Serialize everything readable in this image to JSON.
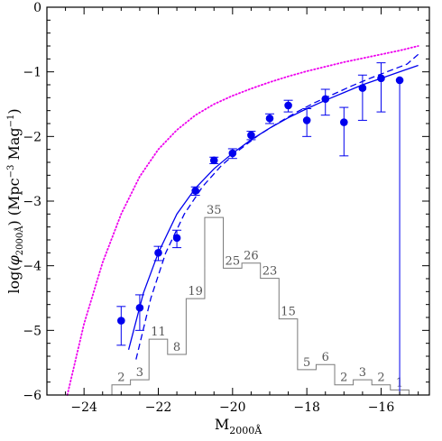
{
  "chart_data": {
    "type": "line",
    "xlabel": "M",
    "xlabel_sub": "2000Å",
    "ylabel_parts": [
      "log(",
      "φ",
      "2000Å",
      ")  (Mpc",
      "−3",
      " Mag",
      "−1",
      ")"
    ],
    "xlim": [
      -25,
      -14.7
    ],
    "ylim": [
      -6,
      0
    ],
    "x_ticks": [
      -24,
      -22,
      -20,
      -18,
      -16
    ],
    "x_tick_labels": [
      "−24",
      "−22",
      "−20",
      "−18",
      "−16"
    ],
    "y_ticks": [
      0,
      -1,
      -2,
      -3,
      -4,
      -5,
      -6
    ],
    "y_tick_labels": [
      "0",
      "−1",
      "−2",
      "−3",
      "−4",
      "−5",
      "−6"
    ],
    "grid": false,
    "colors": {
      "points": "#0000ee",
      "fit": "#0000ee",
      "dotted": "#ee00ee",
      "histogram": "#7a7a7a",
      "axes": "#000000"
    },
    "points": [
      {
        "x": -23.0,
        "y": -4.85,
        "err_lo": 0.38,
        "err_hi": 0.22
      },
      {
        "x": -22.5,
        "y": -4.65,
        "err_lo": 0.35,
        "err_hi": 0.2
      },
      {
        "x": -22.0,
        "y": -3.8,
        "err_lo": 0.12,
        "err_hi": 0.1
      },
      {
        "x": -21.5,
        "y": -3.57,
        "err_lo": 0.15,
        "err_hi": 0.12
      },
      {
        "x": -21.0,
        "y": -2.84,
        "err_lo": 0.07,
        "err_hi": 0.06
      },
      {
        "x": -20.5,
        "y": -2.37,
        "err_lo": 0.05,
        "err_hi": 0.05
      },
      {
        "x": -20.0,
        "y": -2.26,
        "err_lo": 0.08,
        "err_hi": 0.07
      },
      {
        "x": -19.5,
        "y": -1.98,
        "err_lo": 0.07,
        "err_hi": 0.06
      },
      {
        "x": -19.0,
        "y": -1.72,
        "err_lo": 0.08,
        "err_hi": 0.07
      },
      {
        "x": -18.5,
        "y": -1.52,
        "err_lo": 0.1,
        "err_hi": 0.08
      },
      {
        "x": -18.0,
        "y": -1.75,
        "err_lo": 0.25,
        "err_hi": 0.18
      },
      {
        "x": -17.5,
        "y": -1.42,
        "err_lo": 0.25,
        "err_hi": 0.15
      },
      {
        "x": -17.0,
        "y": -1.78,
        "err_lo": 0.52,
        "err_hi": 0.23
      },
      {
        "x": -16.5,
        "y": -1.25,
        "err_lo": 0.5,
        "err_hi": 0.2
      },
      {
        "x": -16.0,
        "y": -1.1,
        "err_lo": 0.52,
        "err_hi": 0.24
      },
      {
        "x": -15.5,
        "y": -1.13,
        "err_lo": 4.87,
        "err_hi": 0.0
      }
    ],
    "fit_solid": {
      "x": [
        -22.8,
        -22.4,
        -22.0,
        -21.5,
        -21.0,
        -20.5,
        -20.0,
        -19.5,
        -19.0,
        -18.5,
        -18.0,
        -17.5,
        -17.0,
        -16.5,
        -16.0,
        -15.5,
        -15.0
      ],
      "y": [
        -5.3,
        -4.42,
        -3.8,
        -3.2,
        -2.8,
        -2.5,
        -2.26,
        -2.05,
        -1.87,
        -1.71,
        -1.57,
        -1.44,
        -1.32,
        -1.2,
        -1.1,
        -1.0,
        -0.9
      ]
    },
    "fit_dashed": {
      "x": [
        -22.6,
        -22.2,
        -21.8,
        -21.3,
        -20.8,
        -20.3,
        -19.8,
        -19.3,
        -18.8,
        -18.3,
        -17.8,
        -17.3,
        -16.8,
        -16.3,
        -15.8,
        -15.3,
        -15.0
      ],
      "y": [
        -5.45,
        -4.5,
        -3.8,
        -3.2,
        -2.77,
        -2.45,
        -2.2,
        -1.98,
        -1.8,
        -1.63,
        -1.48,
        -1.35,
        -1.22,
        -1.1,
        -0.99,
        -0.88,
        -0.73
      ]
    },
    "dotted": {
      "x": [
        -24.45,
        -24.0,
        -23.5,
        -23.0,
        -22.5,
        -22.0,
        -21.5,
        -21.0,
        -20.5,
        -20.0,
        -19.5,
        -19.0,
        -18.5,
        -18.0,
        -17.5,
        -17.0,
        -16.5,
        -16.0,
        -15.5,
        -15.0
      ],
      "y": [
        -6.0,
        -4.9,
        -3.95,
        -3.2,
        -2.62,
        -2.2,
        -1.9,
        -1.67,
        -1.5,
        -1.37,
        -1.26,
        -1.16,
        -1.07,
        -0.99,
        -0.92,
        -0.85,
        -0.79,
        -0.73,
        -0.67,
        -0.6
      ]
    },
    "histogram": {
      "bins_left": [
        -23.25,
        -22.75,
        -22.25,
        -21.75,
        -21.25,
        -20.75,
        -20.25,
        -19.75,
        -19.25,
        -18.75,
        -18.25,
        -17.75,
        -17.25,
        -16.75,
        -16.25,
        -15.75,
        -15.25
      ],
      "bin_width": 0.5,
      "counts": [
        2,
        3,
        11,
        8,
        19,
        35,
        25,
        26,
        23,
        15,
        5,
        6,
        2,
        3,
        2,
        1,
        0
      ],
      "count_labels": [
        "2",
        "3",
        "11",
        "8",
        "19",
        "35",
        "25",
        "26",
        "23",
        "15",
        "5",
        "6",
        "2",
        "3",
        "2",
        "1",
        ""
      ],
      "baseline": -6,
      "dex_per_count": 0.0785
    }
  }
}
